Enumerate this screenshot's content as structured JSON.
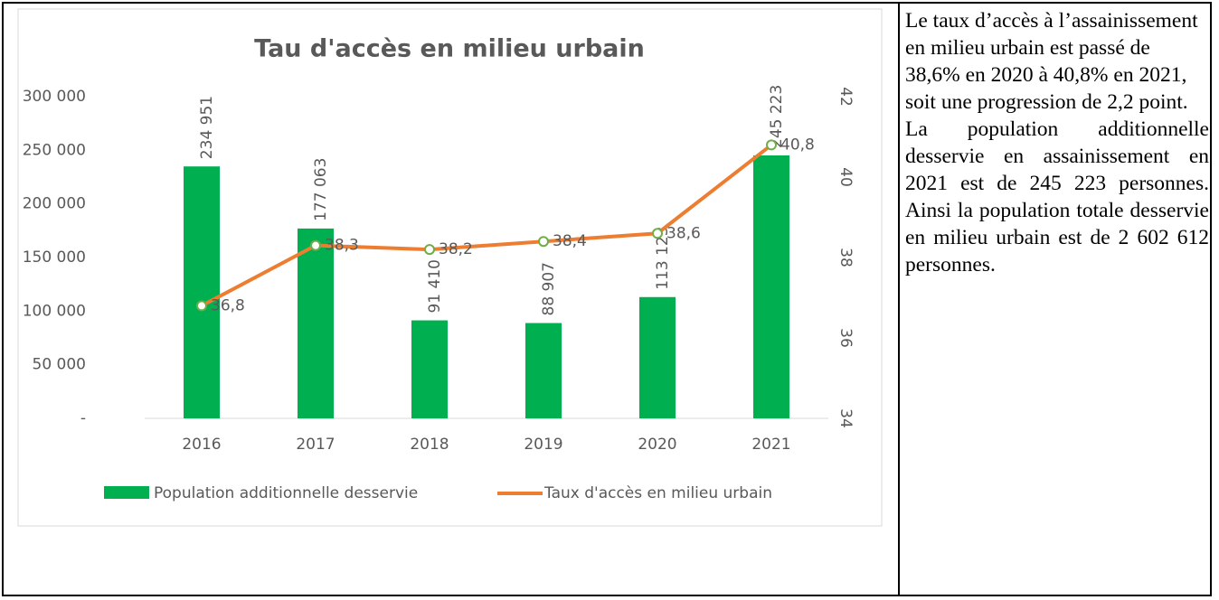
{
  "chart_data": {
    "type": "bar",
    "title": "Tau d'accès en milieu urbain",
    "categories": [
      "2016",
      "2017",
      "2018",
      "2019",
      "2020",
      "2021"
    ],
    "series": [
      {
        "name": "Population additionnelle desservie",
        "color": "#00b050",
        "values": [
          234951,
          177063,
          91410,
          88907,
          113123,
          245223
        ],
        "value_labels": [
          "234 951",
          "177 063",
          "91 410",
          "88 907",
          "113 123",
          "245 223"
        ]
      },
      {
        "name": "Taux d'accès en milieu urbain",
        "type": "line",
        "axis": "y2",
        "color": "#ed7d31",
        "values": [
          36.8,
          38.3,
          38.2,
          38.4,
          38.6,
          40.8
        ],
        "value_labels": [
          "36,8",
          "38,3",
          "38,2",
          "38,4",
          "38,6",
          "40,8"
        ]
      }
    ],
    "ylim": [
      0,
      300000
    ],
    "yticks": [
      {
        "value": 0,
        "label": "-"
      },
      {
        "value": 50000,
        "label": "50 000"
      },
      {
        "value": 100000,
        "label": "100 000"
      },
      {
        "value": 150000,
        "label": "150 000"
      },
      {
        "value": 200000,
        "label": "200 000"
      },
      {
        "value": 250000,
        "label": "250 000"
      },
      {
        "value": 300000,
        "label": "300 000"
      }
    ],
    "y2lim": [
      34,
      42
    ],
    "y2ticks": [
      34,
      36,
      38,
      40,
      42
    ],
    "legend": "bottom"
  },
  "text": {
    "paragraphs": [
      "Le taux d’accès à l’assainissement en milieu urbain est passé de 38,6% en 2020 à 40,8% en 2021, soit une progression de 2,2 point.",
      "La population additionnelle desservie en assainissement en 2021 est de 245 223 personnes. Ainsi la population totale desservie en milieu urbain est de 2 602 612 personnes."
    ]
  }
}
